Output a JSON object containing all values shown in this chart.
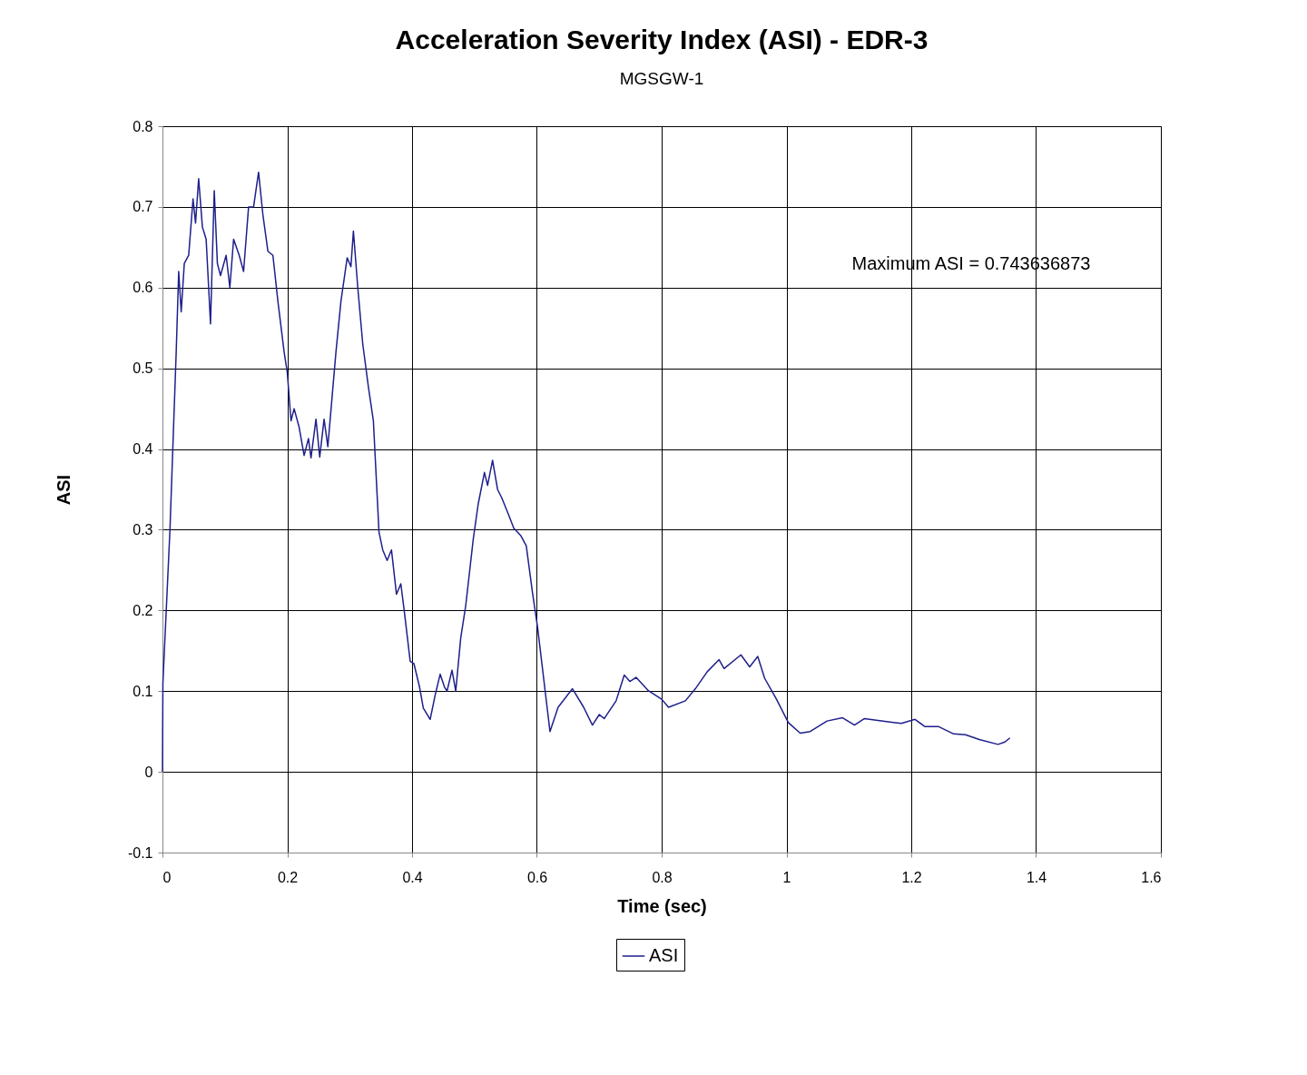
{
  "chart_data": {
    "type": "line",
    "title": "Acceleration Severity Index (ASI) - EDR-3",
    "subtitle": "MGSGW-1",
    "xlabel": "Time (sec)",
    "ylabel": "ASI",
    "xlim": [
      0,
      1.6
    ],
    "xticks": [
      0,
      0.2,
      0.4,
      0.6,
      0.8,
      1,
      1.2,
      1.4,
      1.6
    ],
    "ylim": [
      -0.1,
      0.8
    ],
    "yticks": [
      -0.1,
      0,
      0.1,
      0.2,
      0.3,
      0.4,
      0.5,
      0.6,
      0.7,
      0.8
    ],
    "grid": true,
    "legend": "bottom",
    "marker": "none",
    "line_style": "solid",
    "annotations": [
      "Maximum ASI =  0.743636873"
    ],
    "series": [
      {
        "name": "ASI",
        "color": "#1f1f8c",
        "x": [
          0,
          0.0007,
          0.012,
          0.022,
          0.026,
          0.03,
          0.035,
          0.042,
          0.049,
          0.053,
          0.058,
          0.064,
          0.07,
          0.077,
          0.083,
          0.088,
          0.093,
          0.102,
          0.108,
          0.114,
          0.123,
          0.13,
          0.138,
          0.146,
          0.154,
          0.161,
          0.169,
          0.177,
          0.185,
          0.195,
          0.2,
          0.206,
          0.211,
          0.219,
          0.227,
          0.234,
          0.238,
          0.246,
          0.252,
          0.259,
          0.265,
          0.278,
          0.286,
          0.296,
          0.302,
          0.306,
          0.313,
          0.321,
          0.33,
          0.338,
          0.347,
          0.353,
          0.36,
          0.367,
          0.375,
          0.382,
          0.388,
          0.397,
          0.403,
          0.412,
          0.418,
          0.429,
          0.437,
          0.445,
          0.452,
          0.456,
          0.464,
          0.47,
          0.478,
          0.486,
          0.498,
          0.506,
          0.516,
          0.521,
          0.529,
          0.537,
          0.544,
          0.555,
          0.563,
          0.574,
          0.583,
          0.593,
          0.601,
          0.621,
          0.634,
          0.657,
          0.675,
          0.689,
          0.7,
          0.708,
          0.727,
          0.74,
          0.749,
          0.759,
          0.778,
          0.8,
          0.811,
          0.838,
          0.854,
          0.873,
          0.892,
          0.9,
          0.927,
          0.941,
          0.954,
          0.965,
          0.984,
          1.003,
          1.022,
          1.038,
          1.065,
          1.09,
          1.109,
          1.125,
          1.163,
          1.184,
          1.206,
          1.222,
          1.244,
          1.268,
          1.287,
          1.309,
          1.339,
          1.35,
          1.358
        ],
        "values": [
          0,
          0.11,
          0.3,
          0.52,
          0.62,
          0.57,
          0.63,
          0.64,
          0.71,
          0.68,
          0.735,
          0.675,
          0.66,
          0.555,
          0.72,
          0.63,
          0.615,
          0.64,
          0.6,
          0.66,
          0.64,
          0.62,
          0.7,
          0.7,
          0.743,
          0.69,
          0.645,
          0.64,
          0.583,
          0.52,
          0.495,
          0.435,
          0.45,
          0.427,
          0.392,
          0.413,
          0.389,
          0.437,
          0.39,
          0.437,
          0.403,
          0.52,
          0.583,
          0.637,
          0.626,
          0.67,
          0.6,
          0.53,
          0.477,
          0.435,
          0.297,
          0.275,
          0.262,
          0.275,
          0.22,
          0.233,
          0.196,
          0.137,
          0.134,
          0.105,
          0.079,
          0.065,
          0.095,
          0.121,
          0.105,
          0.1,
          0.126,
          0.1,
          0.166,
          0.206,
          0.288,
          0.332,
          0.371,
          0.355,
          0.386,
          0.35,
          0.339,
          0.318,
          0.302,
          0.293,
          0.28,
          0.222,
          0.18,
          0.05,
          0.08,
          0.103,
          0.08,
          0.058,
          0.071,
          0.066,
          0.088,
          0.12,
          0.112,
          0.117,
          0.101,
          0.09,
          0.08,
          0.088,
          0.103,
          0.124,
          0.139,
          0.128,
          0.145,
          0.13,
          0.143,
          0.116,
          0.09,
          0.061,
          0.048,
          0.05,
          0.063,
          0.067,
          0.058,
          0.066,
          0.062,
          0.06,
          0.065,
          0.056,
          0.056,
          0.047,
          0.046,
          0.04,
          0.034,
          0.037,
          0.042
        ]
      }
    ]
  }
}
